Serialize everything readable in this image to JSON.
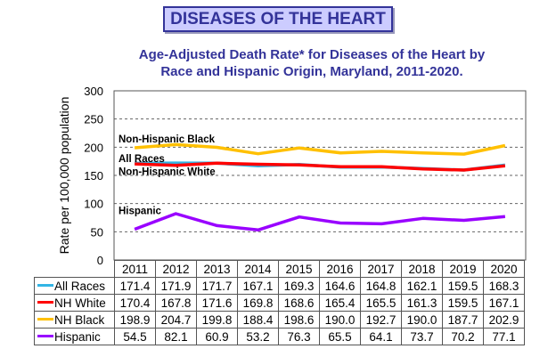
{
  "banner": "DISEASES OF THE HEART",
  "chart_data": {
    "type": "line",
    "title": "Age-Adjusted Death Rate* for Diseases of the Heart by Race and Hispanic Origin, Maryland, 2011-2020.",
    "title_lines": [
      "Age-Adjusted Death Rate* for Diseases of the Heart by",
      "Race and Hispanic Origin, Maryland, 2011-2020."
    ],
    "xlabel": "",
    "ylabel": "Rate per 100,000 population",
    "ylim": [
      0,
      300
    ],
    "yticks": [
      0,
      50,
      100,
      150,
      200,
      250,
      300
    ],
    "grid": true,
    "x": [
      "2011",
      "2012",
      "2013",
      "2014",
      "2015",
      "2016",
      "2017",
      "2018",
      "2019",
      "2020"
    ],
    "series": [
      {
        "name": "All Races",
        "color": "#33b5e5",
        "values": [
          171.4,
          171.9,
          171.7,
          167.1,
          169.3,
          164.6,
          164.8,
          162.1,
          159.5,
          168.3
        ]
      },
      {
        "name": "NH White",
        "color": "#ff0000",
        "values": [
          170.4,
          167.8,
          171.6,
          169.8,
          168.6,
          165.4,
          165.5,
          161.3,
          159.5,
          167.1
        ]
      },
      {
        "name": "NH Black",
        "color": "#ffc000",
        "values": [
          198.9,
          204.7,
          199.8,
          188.4,
          198.6,
          190.0,
          192.7,
          190.0,
          187.7,
          202.9
        ]
      },
      {
        "name": "Hispanic",
        "color": "#9900ff",
        "values": [
          54.5,
          82.1,
          60.9,
          53.2,
          76.3,
          65.5,
          64.1,
          73.7,
          70.2,
          77.1
        ]
      }
    ],
    "annotations": [
      {
        "text": "Non-Hispanic Black",
        "near_series": "NH Black",
        "y": 215
      },
      {
        "text": "All Races",
        "near_series": "All Races",
        "y": 180
      },
      {
        "text": "Non-Hispanic White",
        "near_series": "NH White",
        "y": 157
      },
      {
        "text": "Hispanic",
        "near_series": "Hispanic",
        "y": 88
      }
    ],
    "legend": "data-table-below"
  }
}
